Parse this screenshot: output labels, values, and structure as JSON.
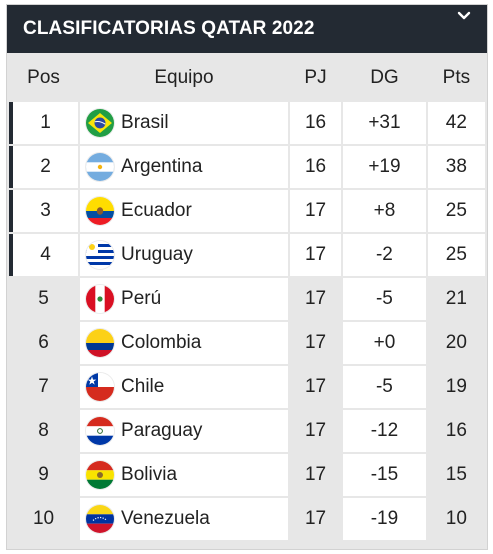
{
  "header": {
    "title": "CLASIFICATORIAS QATAR 2022",
    "toggle_icon": "chevron-down-icon"
  },
  "columns": {
    "pos": "Pos",
    "team": "Equipo",
    "pj": "PJ",
    "dg": "DG",
    "pts": "Pts"
  },
  "rows": [
    {
      "pos": "1",
      "team": "Brasil",
      "flag": "brazil-flag-icon",
      "pj": "16",
      "dg": "+31",
      "pts": "42"
    },
    {
      "pos": "2",
      "team": "Argentina",
      "flag": "argentina-flag-icon",
      "pj": "16",
      "dg": "+19",
      "pts": "38"
    },
    {
      "pos": "3",
      "team": "Ecuador",
      "flag": "ecuador-flag-icon",
      "pj": "17",
      "dg": "+8",
      "pts": "25"
    },
    {
      "pos": "4",
      "team": "Uruguay",
      "flag": "uruguay-flag-icon",
      "pj": "17",
      "dg": "-2",
      "pts": "25"
    },
    {
      "pos": "5",
      "team": "Perú",
      "flag": "peru-flag-icon",
      "pj": "17",
      "dg": "-5",
      "pts": "21"
    },
    {
      "pos": "6",
      "team": "Colombia",
      "flag": "colombia-flag-icon",
      "pj": "17",
      "dg": "+0",
      "pts": "20"
    },
    {
      "pos": "7",
      "team": "Chile",
      "flag": "chile-flag-icon",
      "pj": "17",
      "dg": "-5",
      "pts": "19"
    },
    {
      "pos": "8",
      "team": "Paraguay",
      "flag": "paraguay-flag-icon",
      "pj": "17",
      "dg": "-12",
      "pts": "16"
    },
    {
      "pos": "9",
      "team": "Bolivia",
      "flag": "bolivia-flag-icon",
      "pj": "17",
      "dg": "-15",
      "pts": "15"
    },
    {
      "pos": "10",
      "team": "Venezuela",
      "flag": "venezuela-flag-icon",
      "pj": "17",
      "dg": "-19",
      "pts": "10"
    }
  ],
  "colors": {
    "header_bg": "#232a33",
    "qualified_marker": "#232a33",
    "row_alt": "#e7e7e7"
  }
}
